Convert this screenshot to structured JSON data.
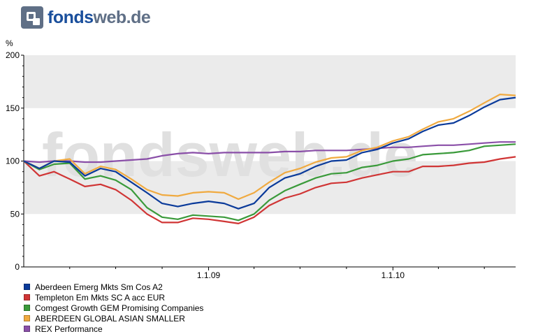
{
  "logo": {
    "part1": "fonds",
    "part2": "web.de"
  },
  "watermark": "fondsweb.de",
  "chart_data": {
    "type": "line",
    "ylabel": "%",
    "ylim": [
      0,
      200
    ],
    "yticks": [
      0,
      50,
      100,
      150,
      200
    ],
    "xlim": [
      "2008-01-01",
      "2010-09-01"
    ],
    "xticks": [
      {
        "date": "2009-01-01",
        "label": "1.1.09"
      },
      {
        "date": "2010-01-01",
        "label": "1.1.10"
      }
    ],
    "grid": "alternating horizontal bands",
    "legend_position": "bottom",
    "x": [
      "2008-01-01",
      "2008-02-01",
      "2008-03-01",
      "2008-04-01",
      "2008-05-01",
      "2008-06-01",
      "2008-07-01",
      "2008-08-01",
      "2008-09-01",
      "2008-10-01",
      "2008-11-01",
      "2008-12-01",
      "2009-01-01",
      "2009-02-01",
      "2009-03-01",
      "2009-04-01",
      "2009-05-01",
      "2009-06-01",
      "2009-07-01",
      "2009-08-01",
      "2009-09-01",
      "2009-10-01",
      "2009-11-01",
      "2009-12-01",
      "2010-01-01",
      "2010-02-01",
      "2010-03-01",
      "2010-04-01",
      "2010-05-01",
      "2010-06-01",
      "2010-07-01",
      "2010-08-01",
      "2010-09-01"
    ],
    "series": [
      {
        "name": "Aberdeen Emerg Mkts Sm Cos A2",
        "color": "#0a3a9a",
        "values": [
          100,
          93,
          100,
          99,
          86,
          93,
          90,
          80,
          70,
          60,
          57,
          60,
          62,
          60,
          55,
          60,
          75,
          84,
          88,
          95,
          100,
          101,
          108,
          111,
          117,
          121,
          128,
          134,
          136,
          143,
          151,
          158,
          160
        ]
      },
      {
        "name": "Templeton Em Mkts SC A acc EUR",
        "color": "#d03535",
        "values": [
          100,
          86,
          90,
          83,
          76,
          78,
          73,
          63,
          50,
          42,
          42,
          46,
          45,
          43,
          41,
          47,
          58,
          65,
          69,
          75,
          79,
          80,
          84,
          87,
          90,
          90,
          95,
          95,
          96,
          98,
          99,
          102,
          104
        ]
      },
      {
        "name": "Comgest Growth GEM Promising Companies",
        "color": "#3a9a3a",
        "values": [
          100,
          92,
          97,
          98,
          83,
          86,
          82,
          73,
          56,
          47,
          45,
          49,
          48,
          47,
          44,
          50,
          63,
          72,
          78,
          84,
          88,
          89,
          94,
          96,
          100,
          102,
          106,
          107,
          108,
          110,
          114,
          115,
          116
        ]
      },
      {
        "name": "ABERDEEN GLOBAL ASIAN SMALLER",
        "color": "#f0aa40",
        "values": [
          100,
          93,
          100,
          102,
          88,
          95,
          92,
          83,
          73,
          68,
          67,
          70,
          71,
          70,
          64,
          70,
          80,
          89,
          93,
          99,
          103,
          104,
          110,
          113,
          119,
          123,
          130,
          137,
          140,
          147,
          155,
          163,
          162
        ]
      },
      {
        "name": "REX Performance",
        "color": "#8a4fa8",
        "values": [
          100,
          99,
          100,
          100,
          99,
          99,
          100,
          101,
          102,
          105,
          107,
          108,
          107,
          108,
          108,
          108,
          108,
          109,
          109,
          110,
          110,
          110,
          111,
          112,
          113,
          113,
          114,
          115,
          115,
          116,
          117,
          118,
          118
        ]
      }
    ]
  }
}
